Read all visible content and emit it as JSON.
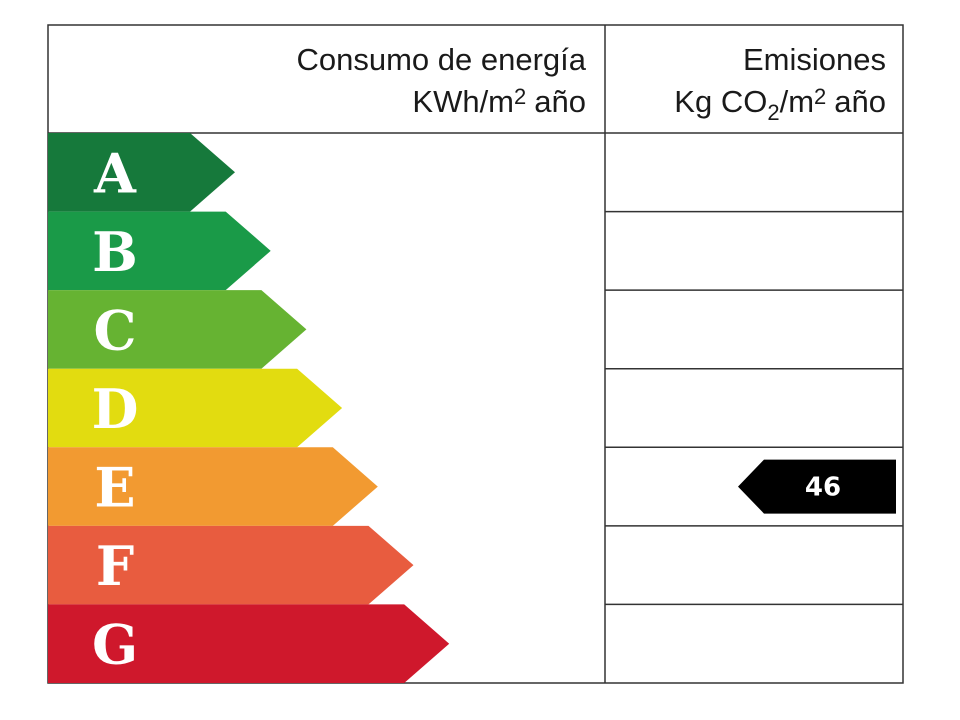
{
  "header": {
    "energy": {
      "title": "Consumo de energía",
      "unit": [
        "KWh/m",
        "2",
        "año"
      ]
    },
    "emissions": {
      "title": "Emisiones",
      "unit": [
        "Kg CO",
        "2",
        "/m",
        "2",
        "año"
      ]
    }
  },
  "ratings": [
    {
      "letter": "A",
      "color": "#16793b"
    },
    {
      "letter": "B",
      "color": "#1a9a48"
    },
    {
      "letter": "C",
      "color": "#66b332"
    },
    {
      "letter": "D",
      "color": "#e2dc10"
    },
    {
      "letter": "E",
      "color": "#f29a31"
    },
    {
      "letter": "F",
      "color": "#e85c3f"
    },
    {
      "letter": "G",
      "color": "#cf182c"
    }
  ],
  "emissions": {
    "rating": "E",
    "value": 46
  }
}
